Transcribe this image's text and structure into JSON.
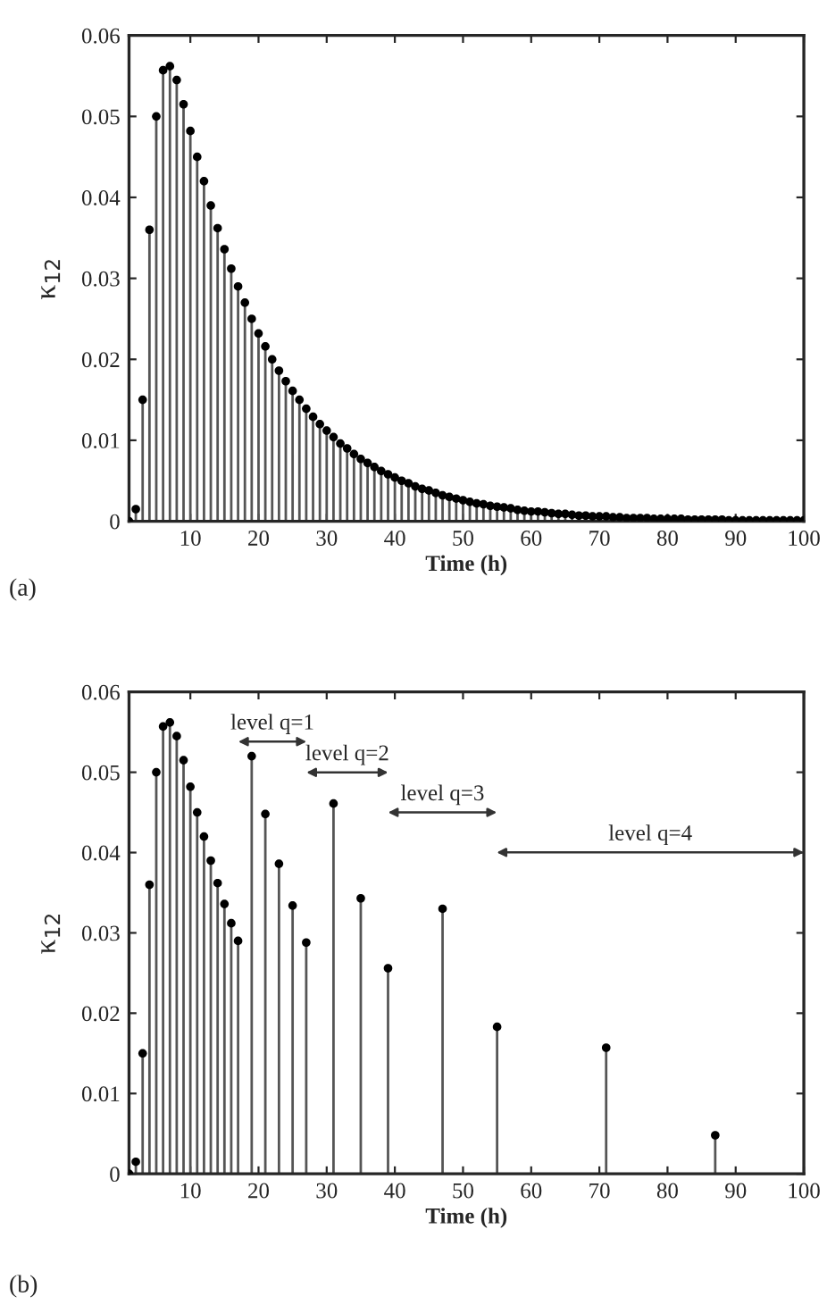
{
  "chart_data": [
    {
      "type": "lollipop",
      "xlabel": "Time (h)",
      "ylabel": "κ$_{12}$",
      "annotations": [
        "(a)"
      ],
      "x": [
        1,
        2,
        3,
        4,
        5,
        6,
        7,
        8,
        9,
        10,
        11,
        12,
        13,
        14,
        15,
        16,
        17,
        18,
        19,
        20,
        21,
        22,
        23,
        24,
        25,
        26,
        27,
        28,
        29,
        30,
        31,
        32,
        33,
        34,
        35,
        36,
        37,
        38,
        39,
        40,
        41,
        42,
        43,
        44,
        45,
        46,
        47,
        48,
        49,
        50,
        51,
        52,
        53,
        54,
        55,
        56,
        57,
        58,
        59,
        60,
        61,
        62,
        63,
        64,
        65,
        66,
        67,
        68,
        69,
        70,
        71,
        72,
        73,
        74,
        75,
        76,
        77,
        78,
        79,
        80,
        81,
        82,
        83,
        84,
        85,
        86,
        87,
        88,
        89,
        90,
        91,
        92,
        93,
        94,
        95,
        96,
        97,
        98,
        99,
        100
      ],
      "series": [
        {
          "color": "#000000",
          "values": [
            0,
            0.0015,
            0.015,
            0.036,
            0.05,
            0.0557,
            0.0562,
            0.0545,
            0.0515,
            0.0482,
            0.045,
            0.042,
            0.039,
            0.0362,
            0.0336,
            0.0312,
            0.029,
            0.027,
            0.025,
            0.0232,
            0.0216,
            0.02,
            0.0186,
            0.0173,
            0.0161,
            0.015,
            0.0139,
            0.0129,
            0.012,
            0.0112,
            0.0104,
            0.0096,
            0.009,
            0.0083,
            0.0077,
            0.0072,
            0.0067,
            0.0062,
            0.0058,
            0.0054,
            0.005,
            0.0047,
            0.0043,
            0.004,
            0.0038,
            0.0035,
            0.0032,
            0.003,
            0.0028,
            0.0026,
            0.0024,
            0.0022,
            0.0021,
            0.0019,
            0.0018,
            0.0017,
            0.0016,
            0.0014,
            0.0013,
            0.0012,
            0.0012,
            0.0011,
            0.001,
            0.0009,
            0.0009,
            0.0008,
            0.0007,
            0.0007,
            0.0006,
            0.0006,
            0.0006,
            0.0005,
            0.0005,
            0.0004,
            0.0004,
            0.0004,
            0.0004,
            0.0003,
            0.0003,
            0.0003,
            0.0003,
            0.0003,
            0.0002,
            0.0002,
            0.0002,
            0.0002,
            0.0002,
            0.0002,
            0.0001,
            0.0001,
            0.0001,
            0.0001,
            0.0001,
            0.0001,
            0.0001,
            0.0001,
            0.0001,
            0.0001,
            0.0001,
            0.0001
          ]
        }
      ],
      "xlim": [
        1,
        100
      ],
      "xticks": [
        10,
        20,
        30,
        40,
        50,
        60,
        70,
        80,
        90,
        100
      ],
      "ylim": [
        0,
        0.06
      ],
      "yticks": [
        0,
        0.01,
        0.02,
        0.03,
        0.04,
        0.05,
        0.06
      ],
      "marker": "circle",
      "legend": false
    },
    {
      "type": "lollipop",
      "xlabel": "Time (h)",
      "ylabel": "κ$_{12}$",
      "annotations": [
        "(b)",
        "level q=1",
        "level q=2",
        "level q=3",
        "level q=4"
      ],
      "x": [
        1,
        2,
        3,
        4,
        5,
        6,
        7,
        8,
        9,
        10,
        11,
        12,
        13,
        14,
        15,
        16,
        17,
        19,
        21,
        23,
        25,
        27,
        31,
        35,
        39,
        47,
        55,
        71,
        87
      ],
      "series": [
        {
          "color": "#000000",
          "values": [
            0,
            0.0015,
            0.015,
            0.036,
            0.05,
            0.0557,
            0.0562,
            0.0545,
            0.0515,
            0.0482,
            0.045,
            0.042,
            0.039,
            0.0362,
            0.0336,
            0.0312,
            0.029,
            0.052,
            0.0448,
            0.0386,
            0.0334,
            0.0288,
            0.0461,
            0.0343,
            0.0256,
            0.033,
            0.0183,
            0.0157,
            0.0048
          ]
        }
      ],
      "xlim": [
        1,
        100
      ],
      "xticks": [
        10,
        20,
        30,
        40,
        50,
        60,
        70,
        80,
        90,
        100
      ],
      "ylim": [
        0,
        0.06
      ],
      "yticks": [
        0,
        0.01,
        0.02,
        0.03,
        0.04,
        0.05,
        0.06
      ],
      "marker": "circle",
      "legend": false
    }
  ]
}
